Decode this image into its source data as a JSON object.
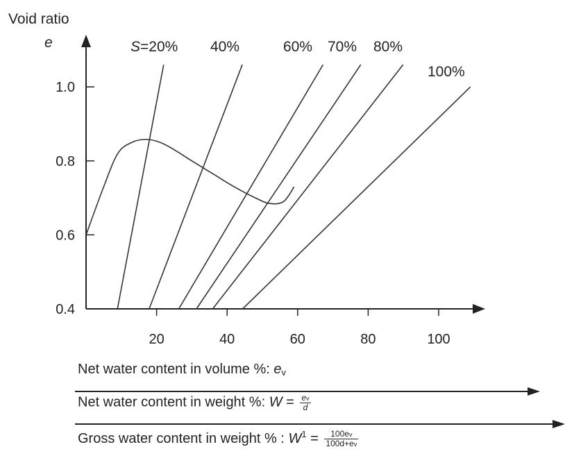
{
  "chart_data": {
    "type": "line",
    "title": "",
    "ylabel": "Void ratio",
    "ylabel_symbol": "e",
    "y_ticks": [
      "0.4",
      "0.6",
      "0.8",
      "1.0"
    ],
    "x_ticks": [
      "20",
      "40",
      "60",
      "80",
      "100"
    ],
    "ylim": [
      0.4,
      1.06
    ],
    "series": [
      {
        "name": "S=20%",
        "label_prefix": "S",
        "label_value": "=20%",
        "x": [
          8.9,
          22.0
        ],
        "y": [
          0.4,
          1.06
        ]
      },
      {
        "name": "40%",
        "x": [
          17.9,
          44.3
        ],
        "y": [
          0.4,
          1.06
        ]
      },
      {
        "name": "60%",
        "x": [
          26.3,
          67.2
        ],
        "y": [
          0.4,
          1.06
        ]
      },
      {
        "name": "70%",
        "x": [
          31.3,
          77.9
        ],
        "y": [
          0.4,
          1.06
        ]
      },
      {
        "name": "80%",
        "x": [
          35.9,
          89.9
        ],
        "y": [
          0.4,
          1.06
        ]
      },
      {
        "name": "100%",
        "x": [
          44.4,
          109.0
        ],
        "y": [
          0.4,
          1.0
        ]
      }
    ],
    "curve": {
      "x": [
        0,
        5,
        9,
        13,
        17,
        21,
        25,
        30,
        36,
        42,
        48,
        52,
        56,
        59
      ],
      "y": [
        0.6,
        0.73,
        0.82,
        0.85,
        0.858,
        0.85,
        0.83,
        0.8,
        0.765,
        0.73,
        0.7,
        0.685,
        0.69,
        0.73
      ]
    }
  },
  "footer": {
    "line1_text": "Net water content in volume %: ",
    "line1_var": "e",
    "line1_sub": "v",
    "line2_text": "Net water content in weight %: ",
    "line2_var": "W",
    "line2_eq": " = ",
    "line2_num_var": "e",
    "line2_num_sub": "v",
    "line2_den": "d",
    "line3_text": "Gross water content in weight % : ",
    "line3_var": "W",
    "line3_sup": "1",
    "line3_eq": " = ",
    "line3_num": "100e",
    "line3_num_sub": "v",
    "line3_den": "100d+e",
    "line3_den_sub": "v"
  }
}
